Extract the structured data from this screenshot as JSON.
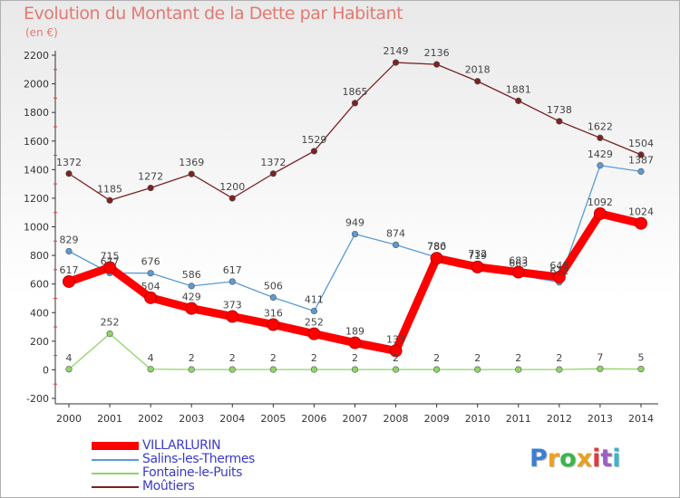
{
  "chart_data": {
    "type": "line",
    "title": "Evolution du Montant de la Dette par Habitant",
    "subtitle": "(en €)",
    "x": [
      "2000",
      "2001",
      "2002",
      "2003",
      "2004",
      "2005",
      "2006",
      "2007",
      "2008",
      "2009",
      "2010",
      "2011",
      "2012",
      "2013",
      "2014"
    ],
    "ylim": [
      -200,
      2200
    ],
    "yticks": [
      -200,
      0,
      200,
      400,
      600,
      800,
      1000,
      1200,
      1400,
      1600,
      1800,
      2000,
      2200
    ],
    "grid": false,
    "legend_position": "bottom-left",
    "series": [
      {
        "name": "Moûtiers",
        "color": "#7a2323",
        "values": [
          1372,
          1185,
          1272,
          1369,
          1200,
          1372,
          1529,
          1865,
          2149,
          2136,
          2018,
          1881,
          1738,
          1622,
          1504
        ]
      },
      {
        "name": "Salins-les-Thermes",
        "color": "#5b9bd5",
        "values": [
          829,
          677,
          676,
          586,
          617,
          506,
          411,
          949,
          874,
          786,
          732,
          663,
          612,
          1429,
          1387
        ]
      },
      {
        "name": "Fontaine-le-Puits",
        "color": "#90d468",
        "values": [
          4,
          252,
          4,
          2,
          2,
          2,
          2,
          2,
          2,
          2,
          2,
          2,
          2,
          7,
          5
        ]
      },
      {
        "name": "VILLARLURIN",
        "color": "#ff0000",
        "values": [
          617,
          715,
          504,
          429,
          373,
          316,
          252,
          189,
          133,
          780,
          719,
          683,
          648,
          1092,
          1024
        ]
      }
    ],
    "data_labels": {
      "Moûtiers": [
        "1372",
        "1185",
        "1272",
        "1369",
        "1200",
        "1372",
        "1529",
        "1865",
        "2149",
        "2136",
        "2018",
        "1881",
        "1738",
        "1622",
        "1504"
      ],
      "Salins-les-Thermes": [
        "829",
        "677",
        "676",
        "586",
        "617",
        "506",
        "411",
        "949",
        "874",
        "786",
        "732",
        "663",
        "612",
        "1429",
        "1387"
      ],
      "Fontaine-le-Puits": [
        "4",
        "252",
        "4",
        "2",
        "2",
        "2",
        "2",
        "2",
        "2",
        "2",
        "2",
        "2",
        "2",
        "7",
        "5"
      ],
      "VILLARLURIN": [
        "617",
        "715",
        "504",
        "429",
        "373",
        "316",
        "252",
        "189",
        "133",
        "780",
        "719",
        "683",
        "648",
        "1092",
        "1024"
      ]
    }
  },
  "legend": {
    "items": [
      {
        "label": "VILLARLURIN",
        "color": "#ff0000",
        "thick": true
      },
      {
        "label": "Salins-les-Thermes",
        "color": "#5b9bd5",
        "thick": false
      },
      {
        "label": "Fontaine-le-Puits",
        "color": "#90d468",
        "thick": false
      },
      {
        "label": "Moûtiers",
        "color": "#7a2323",
        "thick": false
      }
    ]
  },
  "logo": {
    "letters": [
      "P",
      "r",
      "o",
      "x",
      "i",
      "t",
      "i"
    ],
    "colors": [
      "#3b7fd1",
      "#f0a020",
      "#3bb54a",
      "#e8a020",
      "#e03a3a",
      "#9a60c8",
      "#3bb5c8"
    ]
  }
}
